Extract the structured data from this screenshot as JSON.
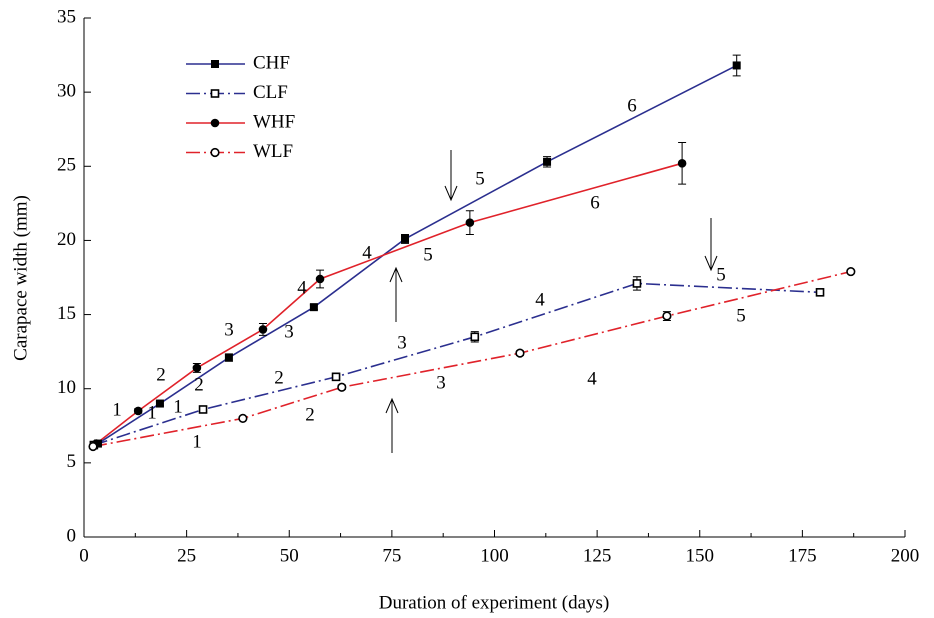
{
  "chart_data": {
    "type": "line",
    "x_label": "Duration of experiment (days)",
    "y_label": "Carapace width (mm)",
    "xlim": [
      0,
      200
    ],
    "xticks": [
      0,
      25,
      50,
      75,
      100,
      125,
      150,
      175,
      200
    ],
    "ylim": [
      0,
      35
    ],
    "yticks": [
      0,
      5,
      10,
      15,
      20,
      25,
      30,
      35
    ],
    "legend": "upper left",
    "series": [
      {
        "name": "CHF",
        "color": "#2b2f8f",
        "dash": "solid",
        "marker": "square-filled",
        "x": [
          3.4,
          18.5,
          35.3,
          56,
          78.2,
          112.8,
          159
        ],
        "values": [
          6.3,
          9.0,
          12.1,
          15.5,
          20.1,
          25.3,
          31.8
        ],
        "errors": [
          0.1,
          0.15,
          0.25,
          0.15,
          0.3,
          0.35,
          0.7
        ]
      },
      {
        "name": "CLF",
        "color": "#2b2f8f",
        "dash": "dashdot",
        "marker": "square-open",
        "x": [
          2.4,
          29,
          61.4,
          95.2,
          134.7,
          179.3
        ],
        "values": [
          6.2,
          8.6,
          10.8,
          13.5,
          17.1,
          16.5
        ],
        "errors": [
          0.1,
          0.2,
          0.25,
          0.35,
          0.45,
          0.15
        ]
      },
      {
        "name": "WHF",
        "color": "#e0222a",
        "dash": "solid",
        "marker": "circle-filled",
        "x": [
          3,
          13.2,
          27.5,
          43.6,
          57.5,
          94,
          145.7
        ],
        "values": [
          6.3,
          8.5,
          11.4,
          14.0,
          17.4,
          21.2,
          25.2
        ],
        "errors": [
          0.15,
          0.15,
          0.3,
          0.4,
          0.6,
          0.8,
          1.4
        ]
      },
      {
        "name": "WLF",
        "color": "#e0222a",
        "dash": "dashdot",
        "marker": "circle-open",
        "x": [
          2.2,
          38.7,
          62.8,
          106.2,
          142,
          186.8
        ],
        "values": [
          6.1,
          8.0,
          10.1,
          12.4,
          14.9,
          17.9
        ],
        "errors": [
          0.1,
          0.1,
          0.15,
          0.15,
          0.3,
          0.1
        ]
      }
    ],
    "annotations": [
      "1",
      "1",
      "1",
      "2",
      "2",
      "3",
      "3",
      "4",
      "4",
      "5",
      "5",
      "6",
      "6",
      "2",
      "1",
      "2",
      "3",
      "3",
      "4",
      "4",
      "5",
      "5"
    ]
  }
}
